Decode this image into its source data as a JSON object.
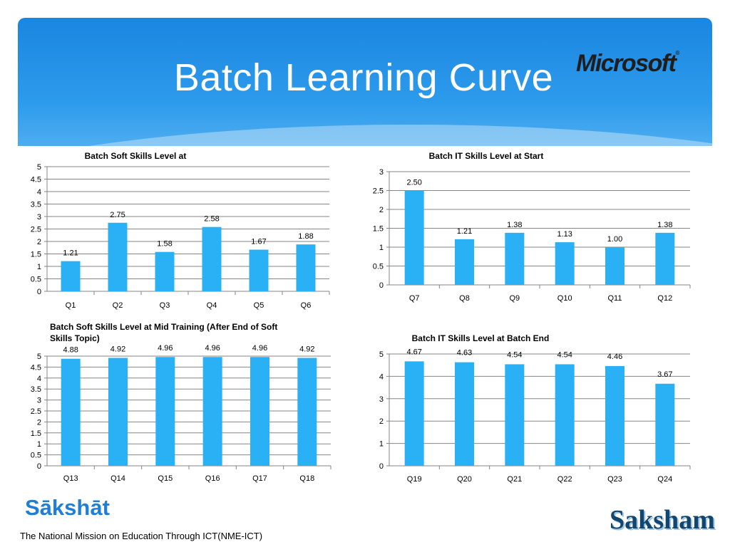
{
  "slide": {
    "title": "Batch Learning Curve",
    "logo_text": "Microsoft",
    "logo_mark": "®",
    "brand_left": "Sākshāt",
    "footer": "The National Mission on Education Through ICT(NME-ICT)",
    "brand_right": "Saksham",
    "bar_color": "#2ab0f5",
    "grid_color": "#868686"
  },
  "chart_data": [
    {
      "type": "bar",
      "title": "Batch Soft Skills Level at",
      "categories": [
        "Q1",
        "Q2",
        "Q3",
        "Q4",
        "Q5",
        "Q6"
      ],
      "values": [
        1.21,
        2.75,
        1.58,
        2.58,
        1.67,
        1.88
      ],
      "labels": [
        "1.21",
        "2.75",
        "1.58",
        "2.58",
        "1.67",
        "1.88"
      ],
      "ylim": [
        0,
        5
      ],
      "yticks": [
        "0",
        "0.5",
        "1",
        "1.5",
        "2",
        "2.5",
        "3",
        "3.5",
        "4",
        "4.5",
        "5"
      ],
      "grid": true
    },
    {
      "type": "bar",
      "title": "Batch IT Skills Level at Start",
      "categories": [
        "Q7",
        "Q8",
        "Q9",
        "Q10",
        "Q11",
        "Q12"
      ],
      "values": [
        2.5,
        1.21,
        1.38,
        1.13,
        1.0,
        1.38
      ],
      "labels": [
        "2.50",
        "1.21",
        "1.38",
        "1.13",
        "1.00",
        "1.38"
      ],
      "ylim": [
        0,
        3
      ],
      "yticks": [
        "0",
        "0.5",
        "1",
        "1.5",
        "2",
        "2.5",
        "3"
      ],
      "grid": true
    },
    {
      "type": "bar",
      "title": "Batch Soft Skills Level at Mid Training (After End  of Soft",
      "title_line2": "Skills Topic)",
      "categories": [
        "Q13",
        "Q14",
        "Q15",
        "Q16",
        "Q17",
        "Q18"
      ],
      "values": [
        4.88,
        4.92,
        4.96,
        4.96,
        4.96,
        4.92
      ],
      "labels": [
        "4.88",
        "4.92",
        "4.96",
        "4.96",
        "4.96",
        "4.92"
      ],
      "ylim": [
        0,
        5
      ],
      "yticks": [
        "0",
        "0.5",
        "1",
        "1.5",
        "2",
        "2.5",
        "3",
        "3.5",
        "4",
        "4.5",
        "5"
      ],
      "grid": true
    },
    {
      "type": "bar",
      "title": "Batch IT Skills Level at Batch End",
      "categories": [
        "Q19",
        "Q20",
        "Q21",
        "Q22",
        "Q23",
        "Q24"
      ],
      "values": [
        4.67,
        4.63,
        4.54,
        4.54,
        4.46,
        3.67
      ],
      "labels": [
        "4.67",
        "4.63",
        "4.54",
        "4.54",
        "4.46",
        "3.67"
      ],
      "ylim": [
        0,
        5
      ],
      "yticks": [
        "0",
        "1",
        "2",
        "3",
        "4",
        "5"
      ],
      "grid": true
    }
  ]
}
